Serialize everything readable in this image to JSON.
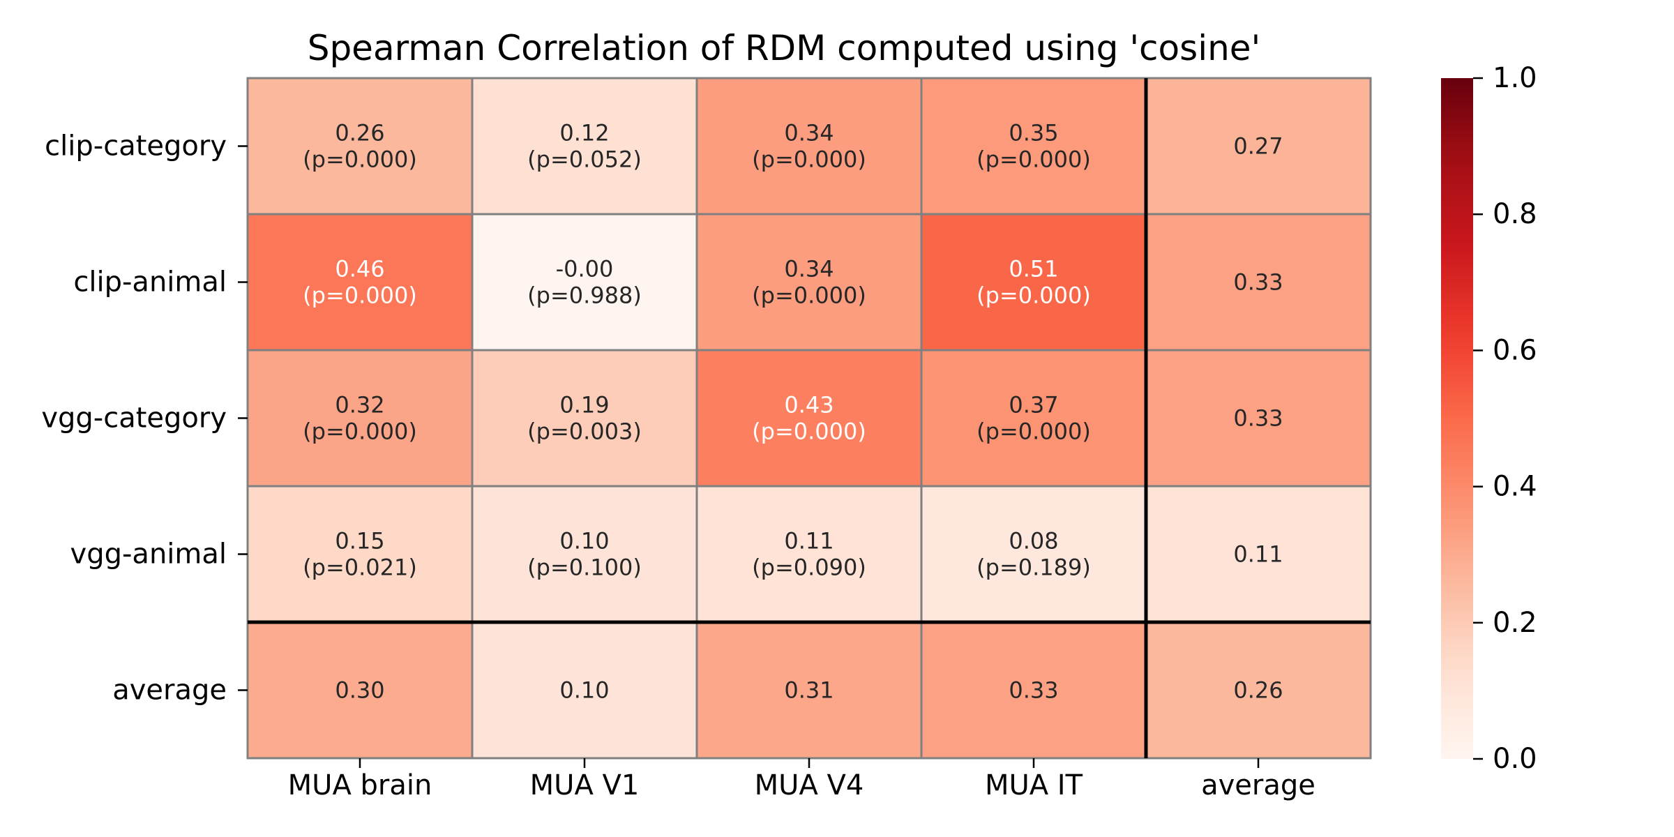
{
  "chart_data": {
    "type": "heatmap",
    "title": "Spearman Correlation of RDM computed using 'cosine'",
    "xlabel": "",
    "ylabel": "",
    "x_categories": [
      "MUA brain",
      "MUA V1",
      "MUA V4",
      "MUA IT",
      "average"
    ],
    "y_categories": [
      "clip-category",
      "clip-animal",
      "vgg-category",
      "vgg-animal",
      "average"
    ],
    "values": [
      [
        0.26,
        0.12,
        0.34,
        0.35,
        0.27
      ],
      [
        0.46,
        -0.0,
        0.34,
        0.51,
        0.33
      ],
      [
        0.32,
        0.19,
        0.43,
        0.37,
        0.33
      ],
      [
        0.15,
        0.1,
        0.11,
        0.08,
        0.11
      ],
      [
        0.3,
        0.1,
        0.31,
        0.33,
        0.26
      ]
    ],
    "cell_labels": [
      [
        "0.26\n(p=0.000)",
        "0.12\n(p=0.052)",
        "0.34\n(p=0.000)",
        "0.35\n(p=0.000)",
        "0.27"
      ],
      [
        "0.46\n(p=0.000)",
        "-0.00\n(p=0.988)",
        "0.34\n(p=0.000)",
        "0.51\n(p=0.000)",
        "0.33"
      ],
      [
        "0.32\n(p=0.000)",
        "0.19\n(p=0.003)",
        "0.43\n(p=0.000)",
        "0.37\n(p=0.000)",
        "0.33"
      ],
      [
        "0.15\n(p=0.021)",
        "0.10\n(p=0.100)",
        "0.11\n(p=0.090)",
        "0.08\n(p=0.189)",
        "0.11"
      ],
      [
        "0.30",
        "0.10",
        "0.31",
        "0.33",
        "0.26"
      ]
    ],
    "colorbar": {
      "colormap": "Reds",
      "range": [
        0.0,
        1.0
      ],
      "ticks": [
        "0.0",
        "0.2",
        "0.4",
        "0.6",
        "0.8",
        "1.0"
      ],
      "tick_values": [
        0.0,
        0.2,
        0.4,
        0.6,
        0.8,
        1.0
      ]
    },
    "separators": {
      "after_row": 4,
      "after_col": 4
    },
    "light_text_threshold": 0.4,
    "colors": {
      "cell_border": "#808080",
      "separator": "#000000",
      "text_dark": "#262626",
      "text_light": "#ffffff"
    }
  }
}
